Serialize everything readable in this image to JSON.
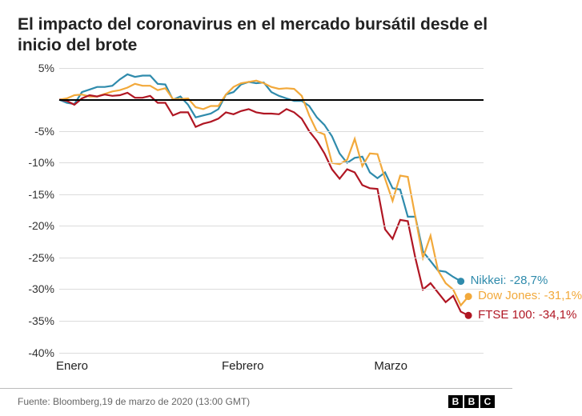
{
  "title": "El impacto del coronavirus en el mercado bursátil desde el inicio del brote",
  "source_text": "Fuente: Bloomberg,19 de marzo de 2020 (13:00 GMT)",
  "logo_letters": [
    "B",
    "B",
    "C"
  ],
  "chart": {
    "type": "line",
    "background_color": "#ffffff",
    "grid_color": "#dcdcdc",
    "axis_font_color": "#333333",
    "ylim": [
      -40,
      5
    ],
    "ytick_step": 5,
    "yticks": [
      5,
      0,
      -5,
      -10,
      -15,
      -20,
      -25,
      -30,
      -35,
      -40
    ],
    "ytick_labels": [
      "5%",
      "",
      "-5%",
      "-10%",
      "-15%",
      "-20%",
      "-25%",
      "-30%",
      "-35%",
      "-40%"
    ],
    "x_domain": [
      0,
      56
    ],
    "x_ticks": [
      {
        "pos": 0,
        "label": "Enero"
      },
      {
        "pos": 22,
        "label": "Febrero"
      },
      {
        "pos": 42,
        "label": "Marzo"
      }
    ],
    "line_width": 2.2,
    "dot_radius": 4.5,
    "series": [
      {
        "name": "Nikkei",
        "label": "Nikkei: -28,7%",
        "color": "#2f8bac",
        "end_dot": true,
        "points": [
          [
            0,
            0
          ],
          [
            1,
            -0.5
          ],
          [
            2,
            -0.7
          ],
          [
            3,
            1.2
          ],
          [
            4,
            1.6
          ],
          [
            5,
            2.0
          ],
          [
            6,
            2.0
          ],
          [
            7,
            2.2
          ],
          [
            8,
            3.2
          ],
          [
            9,
            4.0
          ],
          [
            10,
            3.6
          ],
          [
            11,
            3.8
          ],
          [
            12,
            3.8
          ],
          [
            13,
            2.5
          ],
          [
            14,
            2.4
          ],
          [
            15,
            0.0
          ],
          [
            16,
            0.5
          ],
          [
            17,
            -0.8
          ],
          [
            18,
            -2.8
          ],
          [
            19,
            -2.5
          ],
          [
            20,
            -2.2
          ],
          [
            21,
            -1.5
          ],
          [
            22,
            0.8
          ],
          [
            23,
            1.2
          ],
          [
            24,
            2.4
          ],
          [
            25,
            2.8
          ],
          [
            26,
            2.6
          ],
          [
            27,
            2.7
          ],
          [
            28,
            1.2
          ],
          [
            29,
            0.6
          ],
          [
            30,
            0.2
          ],
          [
            31,
            -0.2
          ],
          [
            32,
            -0.2
          ],
          [
            33,
            -1.0
          ],
          [
            34,
            -2.8
          ],
          [
            35,
            -4.0
          ],
          [
            36,
            -5.8
          ],
          [
            37,
            -8.5
          ],
          [
            38,
            -10.0
          ],
          [
            39,
            -9.2
          ],
          [
            40,
            -9.0
          ],
          [
            41,
            -11.5
          ],
          [
            42,
            -12.4
          ],
          [
            43,
            -11.5
          ],
          [
            44,
            -14.0
          ],
          [
            45,
            -14.2
          ],
          [
            46,
            -18.5
          ],
          [
            47,
            -18.5
          ],
          [
            48,
            -24.0
          ],
          [
            49,
            -25.5
          ],
          [
            50,
            -27.0
          ],
          [
            51,
            -27.2
          ],
          [
            52,
            -28.0
          ],
          [
            53,
            -28.7
          ]
        ]
      },
      {
        "name": "Dow Jones",
        "label": "Dow Jones: -31,1%",
        "color": "#f2a93b",
        "end_dot": true,
        "points": [
          [
            0,
            0
          ],
          [
            1,
            0.2
          ],
          [
            2,
            0.7
          ],
          [
            3,
            0.8
          ],
          [
            4,
            0.5
          ],
          [
            5,
            0.5
          ],
          [
            6,
            0.9
          ],
          [
            7,
            1.3
          ],
          [
            8,
            1.5
          ],
          [
            9,
            1.9
          ],
          [
            10,
            2.5
          ],
          [
            11,
            2.2
          ],
          [
            12,
            2.2
          ],
          [
            13,
            1.5
          ],
          [
            14,
            1.8
          ],
          [
            15,
            0.1
          ],
          [
            16,
            0.1
          ],
          [
            17,
            0.2
          ],
          [
            18,
            -1.2
          ],
          [
            19,
            -1.5
          ],
          [
            20,
            -1.0
          ],
          [
            21,
            -1.0
          ],
          [
            22,
            0.8
          ],
          [
            23,
            2.0
          ],
          [
            24,
            2.6
          ],
          [
            25,
            2.8
          ],
          [
            26,
            3.0
          ],
          [
            27,
            2.6
          ],
          [
            28,
            2.0
          ],
          [
            29,
            1.7
          ],
          [
            30,
            1.8
          ],
          [
            31,
            1.7
          ],
          [
            32,
            0.6
          ],
          [
            33,
            -2.5
          ],
          [
            34,
            -5.0
          ],
          [
            35,
            -5.5
          ],
          [
            36,
            -10.0
          ],
          [
            37,
            -10.2
          ],
          [
            38,
            -9.5
          ],
          [
            39,
            -6.2
          ],
          [
            40,
            -10.5
          ],
          [
            41,
            -8.5
          ],
          [
            42,
            -8.6
          ],
          [
            43,
            -12.5
          ],
          [
            44,
            -16.0
          ],
          [
            45,
            -12.0
          ],
          [
            46,
            -12.2
          ],
          [
            47,
            -18.5
          ],
          [
            48,
            -25.0
          ],
          [
            49,
            -21.5
          ],
          [
            50,
            -27.0
          ],
          [
            51,
            -29.0
          ],
          [
            52,
            -30.0
          ],
          [
            53,
            -32.5
          ],
          [
            54,
            -31.1
          ]
        ]
      },
      {
        "name": "FTSE 100",
        "label": "FTSE 100: -34,1%",
        "color": "#b01623",
        "end_dot": true,
        "points": [
          [
            0,
            0
          ],
          [
            1,
            -0.2
          ],
          [
            2,
            -0.8
          ],
          [
            3,
            0.2
          ],
          [
            4,
            0.7
          ],
          [
            5,
            0.5
          ],
          [
            6,
            0.8
          ],
          [
            7,
            0.6
          ],
          [
            8,
            0.7
          ],
          [
            9,
            1.1
          ],
          [
            10,
            0.3
          ],
          [
            11,
            0.3
          ],
          [
            12,
            0.6
          ],
          [
            13,
            -0.5
          ],
          [
            14,
            -0.5
          ],
          [
            15,
            -2.5
          ],
          [
            16,
            -2.0
          ],
          [
            17,
            -2.0
          ],
          [
            18,
            -4.3
          ],
          [
            19,
            -3.8
          ],
          [
            20,
            -3.5
          ],
          [
            21,
            -3.0
          ],
          [
            22,
            -2.0
          ],
          [
            23,
            -2.3
          ],
          [
            24,
            -1.8
          ],
          [
            25,
            -1.5
          ],
          [
            26,
            -2.0
          ],
          [
            27,
            -2.2
          ],
          [
            28,
            -2.2
          ],
          [
            29,
            -2.3
          ],
          [
            30,
            -1.5
          ],
          [
            31,
            -2.0
          ],
          [
            32,
            -3.0
          ],
          [
            33,
            -5.0
          ],
          [
            34,
            -6.5
          ],
          [
            35,
            -8.5
          ],
          [
            36,
            -11.0
          ],
          [
            37,
            -12.5
          ],
          [
            38,
            -11.0
          ],
          [
            39,
            -11.5
          ],
          [
            40,
            -13.5
          ],
          [
            41,
            -14.0
          ],
          [
            42,
            -14.1
          ],
          [
            43,
            -20.5
          ],
          [
            44,
            -22.0
          ],
          [
            45,
            -19.0
          ],
          [
            46,
            -19.2
          ],
          [
            47,
            -25.0
          ],
          [
            48,
            -30.0
          ],
          [
            49,
            -29.0
          ],
          [
            50,
            -30.5
          ],
          [
            51,
            -32.0
          ],
          [
            52,
            -31.0
          ],
          [
            53,
            -33.5
          ],
          [
            54,
            -34.1
          ]
        ]
      }
    ]
  }
}
